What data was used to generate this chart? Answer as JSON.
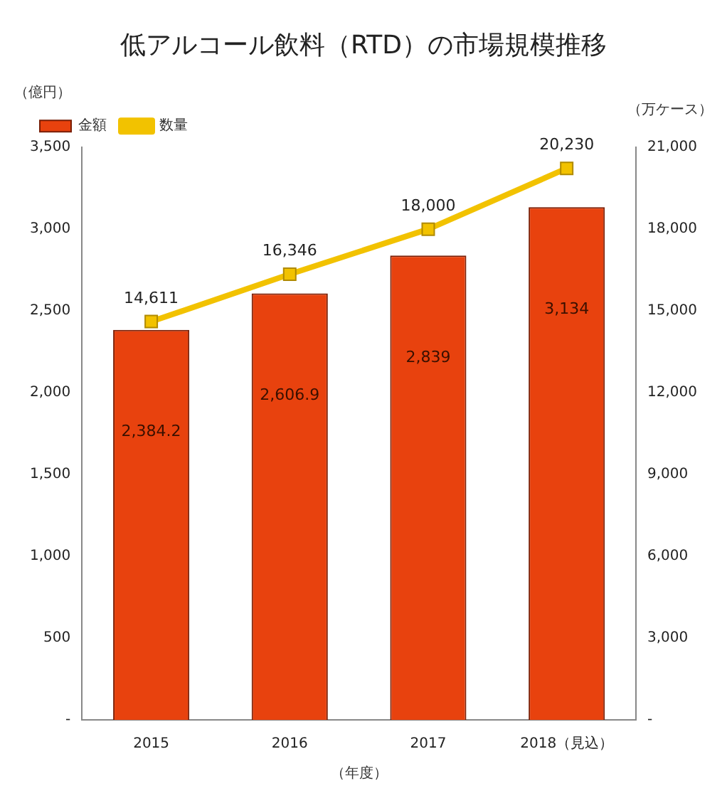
{
  "chart_data": {
    "type": "bar",
    "title": "低アルコール飲料（RTD）の市場規模推移",
    "xlabel": "（年度）",
    "ylabel": "（億円）",
    "y2label": "（万ケース）",
    "categories": [
      "2015",
      "2016",
      "2017",
      "2018（見込）"
    ],
    "series": [
      {
        "name": "金額",
        "color": "#e8420e",
        "values": [
          2384.2,
          2606.9,
          2839,
          3134
        ],
        "value_labels": [
          "2,384.2",
          "2,606.9",
          "2,839",
          "3,134"
        ]
      },
      {
        "name": "数量",
        "type": "line",
        "axis": "y2",
        "color": "#f2c200",
        "marker": "square",
        "values": [
          14611,
          16346,
          18000,
          20230
        ],
        "value_labels": [
          "14,611",
          "16,346",
          "18,000",
          "20,230"
        ]
      }
    ],
    "ylim": [
      0,
      3500
    ],
    "yticks": [
      {
        "value": 0,
        "label": "-"
      },
      500,
      {
        "value": 1000,
        "label": "1,000"
      },
      {
        "value": 1500,
        "label": "1,500"
      },
      {
        "value": 2000,
        "label": "2,000"
      },
      {
        "value": 2500,
        "label": "2,500"
      },
      {
        "value": 3000,
        "label": "3,000"
      },
      {
        "value": 3500,
        "label": "3,500"
      }
    ],
    "y2lim": [
      0,
      21000
    ],
    "y2ticks": [
      {
        "value": 0,
        "label": "-"
      },
      {
        "value": 3000,
        "label": "3,000"
      },
      {
        "value": 6000,
        "label": "6,000"
      },
      {
        "value": 9000,
        "label": "9,000"
      },
      {
        "value": 12000,
        "label": "12,000"
      },
      {
        "value": 15000,
        "label": "15,000"
      },
      {
        "value": 18000,
        "label": "18,000"
      },
      {
        "value": 21000,
        "label": "21,000"
      }
    ],
    "grid": false,
    "legend": "top left"
  }
}
